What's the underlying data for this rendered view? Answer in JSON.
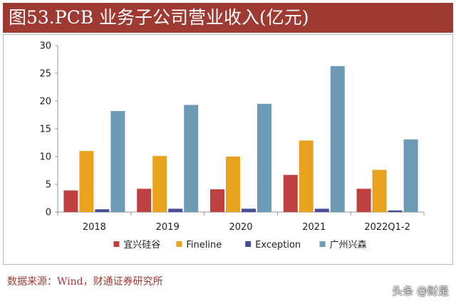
{
  "header": {
    "title": "图53.PCB 业务子公司营业收入(亿元)"
  },
  "footer": {
    "source": "数据来源：Wind，财通证券研究所",
    "watermark": "头条 @财是"
  },
  "colors": {
    "title_bg": "#9e3a32",
    "source_text": "#9e3a32",
    "axis": "#999999"
  },
  "chart_data": {
    "type": "bar",
    "title": "PCB 业务子公司营业收入(亿元)",
    "xlabel": "",
    "ylabel": "",
    "ylim": [
      0,
      30
    ],
    "yticks": [
      0,
      5,
      10,
      15,
      20,
      25,
      30
    ],
    "categories": [
      "2018",
      "2019",
      "2020",
      "2021",
      "2022Q1-2"
    ],
    "legend_position": "bottom",
    "grid": false,
    "series": [
      {
        "name": "宜兴硅谷",
        "color": "#bf4040",
        "values": [
          3.9,
          4.2,
          4.1,
          6.7,
          4.2
        ]
      },
      {
        "name": "Fineline",
        "color": "#e8a21e",
        "values": [
          11.0,
          10.1,
          10.0,
          12.9,
          7.6
        ]
      },
      {
        "name": "Exception",
        "color": "#4a4c9a",
        "values": [
          0.5,
          0.6,
          0.6,
          0.6,
          0.3
        ]
      },
      {
        "name": "广州兴森",
        "color": "#6d9bb5",
        "values": [
          18.2,
          19.3,
          19.5,
          26.3,
          13.1
        ]
      }
    ]
  }
}
